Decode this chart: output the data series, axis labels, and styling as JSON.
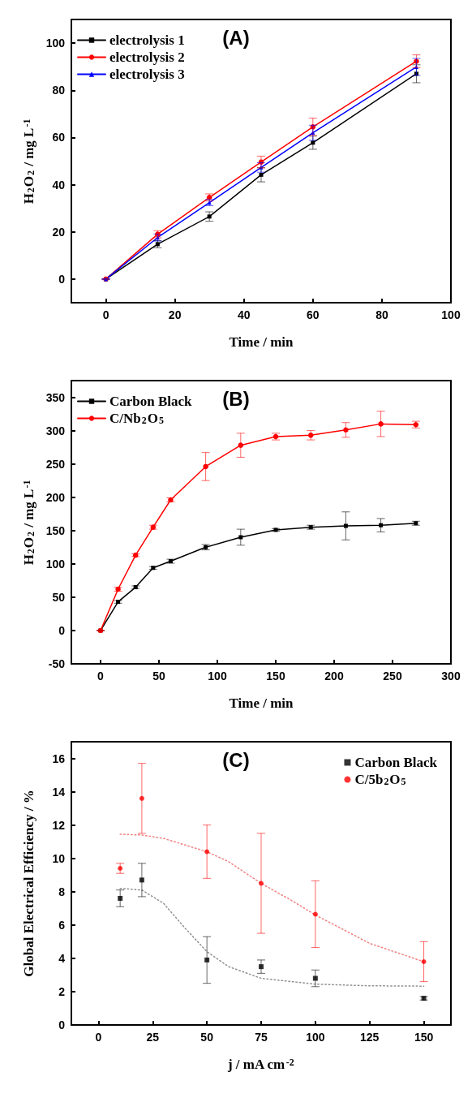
{
  "chart_data": [
    {
      "type": "line",
      "annotations": [
        "(A)"
      ],
      "xlabel": "Time / min",
      "ylabel": "H$_{2}$O$_{2}$ / mg L$^{-1}$",
      "x": [
        0,
        15,
        30,
        45,
        60,
        90
      ],
      "xlim": [
        -10,
        100
      ],
      "xticks": [
        0,
        20,
        40,
        60,
        80,
        100
      ],
      "ylim": [
        -10,
        110
      ],
      "yticks": [
        0,
        20,
        40,
        60,
        80,
        100
      ],
      "legend": "top left",
      "line_style": "solid",
      "series": [
        {
          "name": "electrolysis 1",
          "color": "#000000",
          "marker": "square",
          "values": [
            0,
            14.8,
            26.5,
            44.2,
            57.8,
            87
          ],
          "errors": [
            0,
            1.5,
            2,
            3,
            2.8,
            3.8
          ]
        },
        {
          "name": "electrolysis 2",
          "color": "#ff0000",
          "marker": "circle",
          "values": [
            0,
            19,
            34.6,
            49.6,
            64.5,
            92.3
          ],
          "errors": [
            0,
            1.5,
            1.5,
            2.5,
            3.7,
            2.7
          ]
        },
        {
          "name": "electrolysis 3",
          "color": "#0000ff",
          "marker": "triangle",
          "values": [
            0,
            17.6,
            32.4,
            47.3,
            62,
            89.9
          ],
          "errors": [
            0,
            1.5,
            1.3,
            2,
            3.2,
            3.6
          ]
        }
      ]
    },
    {
      "type": "line",
      "annotations": [
        "(B)"
      ],
      "xlabel": "Time / min",
      "ylabel": "H$_{2}$O$_{2}$ / mg L$^{-1}$",
      "x": [
        0,
        15,
        30,
        45,
        60,
        90,
        120,
        150,
        180,
        210,
        240,
        270
      ],
      "xlim": [
        -25,
        300
      ],
      "xticks": [
        0,
        50,
        100,
        150,
        200,
        250,
        300
      ],
      "ylim": [
        -50,
        375
      ],
      "yticks": [
        -50,
        0,
        50,
        100,
        150,
        200,
        250,
        300,
        350
      ],
      "legend": "top left",
      "line_style": "solid",
      "series": [
        {
          "name": "Carbon Black",
          "color": "#000000",
          "marker": "square",
          "values": [
            0,
            43,
            65,
            94,
            104,
            125,
            140,
            151,
            155,
            157,
            158,
            161
          ],
          "errors": [
            0,
            2,
            2,
            2,
            3,
            4,
            12,
            2,
            3,
            21,
            10,
            3
          ]
        },
        {
          "name": "C/Nb$_{2}$O$_{5}$",
          "color": "#ff0000",
          "marker": "circle",
          "values": [
            0,
            62,
            113,
            155,
            196,
            246,
            278,
            291,
            293,
            301,
            310,
            309
          ],
          "errors": [
            0,
            3,
            2,
            3,
            3,
            21,
            18,
            5,
            7,
            11,
            19,
            5
          ]
        }
      ]
    },
    {
      "type": "scatter",
      "annotations": [
        "(C)"
      ],
      "xlabel": "j / mA cm$^{-2}$",
      "ylabel": "Global Electrical Efficiency / %",
      "x": [
        10,
        20,
        50,
        75,
        100,
        150
      ],
      "xlim": [
        -12.5,
        162.5
      ],
      "xticks": [
        0,
        25,
        50,
        75,
        100,
        125,
        150
      ],
      "ylim": [
        0,
        17
      ],
      "yticks": [
        0,
        2,
        4,
        6,
        8,
        10,
        12,
        14,
        16
      ],
      "legend": "top right",
      "series": [
        {
          "name": "Carbon Black",
          "color": "#000000",
          "marker": "square",
          "values": [
            7.6,
            8.7,
            3.9,
            3.5,
            2.8,
            1.6
          ],
          "errors": [
            0.5,
            1,
            1.4,
            0.4,
            0.5,
            0.1
          ]
        },
        {
          "name": "C/5b$_{2}$O$_{5}$",
          "color": "#ff0000",
          "marker": "circle",
          "values": [
            9.4,
            13.6,
            10.4,
            8.5,
            6.65,
            3.8
          ],
          "errors": [
            0.3,
            2.1,
            1.6,
            3,
            2,
            1.2
          ]
        },
        {
          "type": "line",
          "color": "#909090",
          "line_style": "dotted",
          "marker": "none",
          "x": [
            10,
            20,
            30,
            40,
            50,
            60,
            75,
            100,
            125,
            150
          ],
          "values": [
            8.2,
            8.1,
            7.3,
            5.8,
            4.4,
            3.5,
            2.8,
            2.45,
            2.35,
            2.33
          ]
        },
        {
          "type": "line",
          "color": "#f08080",
          "line_style": "dotted",
          "marker": "none",
          "x": [
            10,
            20,
            30,
            50,
            60,
            75,
            90,
            100,
            125,
            150
          ],
          "values": [
            11.45,
            11.4,
            11.2,
            10.4,
            9.8,
            8.5,
            7.4,
            6.6,
            4.9,
            3.8
          ]
        }
      ]
    }
  ]
}
